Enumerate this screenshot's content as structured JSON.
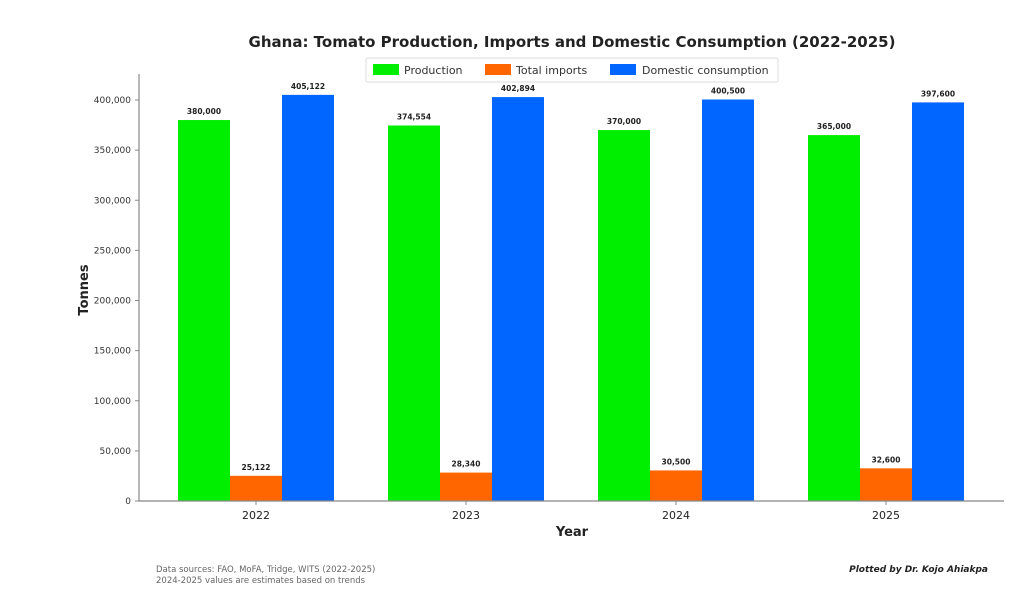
{
  "chart_data": {
    "type": "bar",
    "title": "Ghana: Tomato Production, Imports and Domestic Consumption (2022-2025)",
    "xlabel": "Year",
    "ylabel": "Tonnes",
    "categories": [
      "2022",
      "2023",
      "2024",
      "2025"
    ],
    "series": [
      {
        "name": "Production",
        "color": "#00ee00",
        "values": [
          380000,
          374554,
          370000,
          365000
        ],
        "labels": [
          "380,000",
          "374,554",
          "370,000",
          "365,000"
        ]
      },
      {
        "name": "Total imports",
        "color": "#ff6600",
        "values": [
          25122,
          28340,
          30500,
          32600
        ],
        "labels": [
          "25,122",
          "28,340",
          "30,500",
          "32,600"
        ]
      },
      {
        "name": "Domestic consumption",
        "color": "#0066ff",
        "values": [
          405122,
          402894,
          400500,
          397600
        ],
        "labels": [
          "405,122",
          "402,894",
          "400,500",
          "397,600"
        ]
      }
    ],
    "ylim": [
      0,
      425000
    ],
    "yticks": [
      0,
      50000,
      100000,
      150000,
      200000,
      250000,
      300000,
      350000,
      400000
    ],
    "ytick_labels": [
      "0",
      "50,000",
      "100,000",
      "150,000",
      "200,000",
      "250,000",
      "300,000",
      "350,000",
      "400,000"
    ],
    "grid": false,
    "legend_position": "top-center"
  },
  "footer": {
    "sources": "Data sources: FAO, MoFA, Tridge, WITS (2022-2025)",
    "note": "2024-2025 values are estimates based on trends",
    "credit": "Plotted by Dr. Kojo Ahiakpa"
  }
}
